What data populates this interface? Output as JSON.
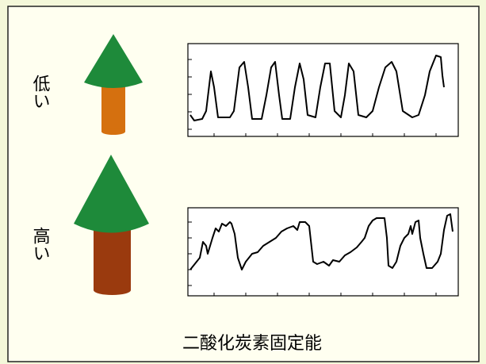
{
  "labels": {
    "low": "低い",
    "high": "高い"
  },
  "caption": "二酸化炭素固定能"
}
